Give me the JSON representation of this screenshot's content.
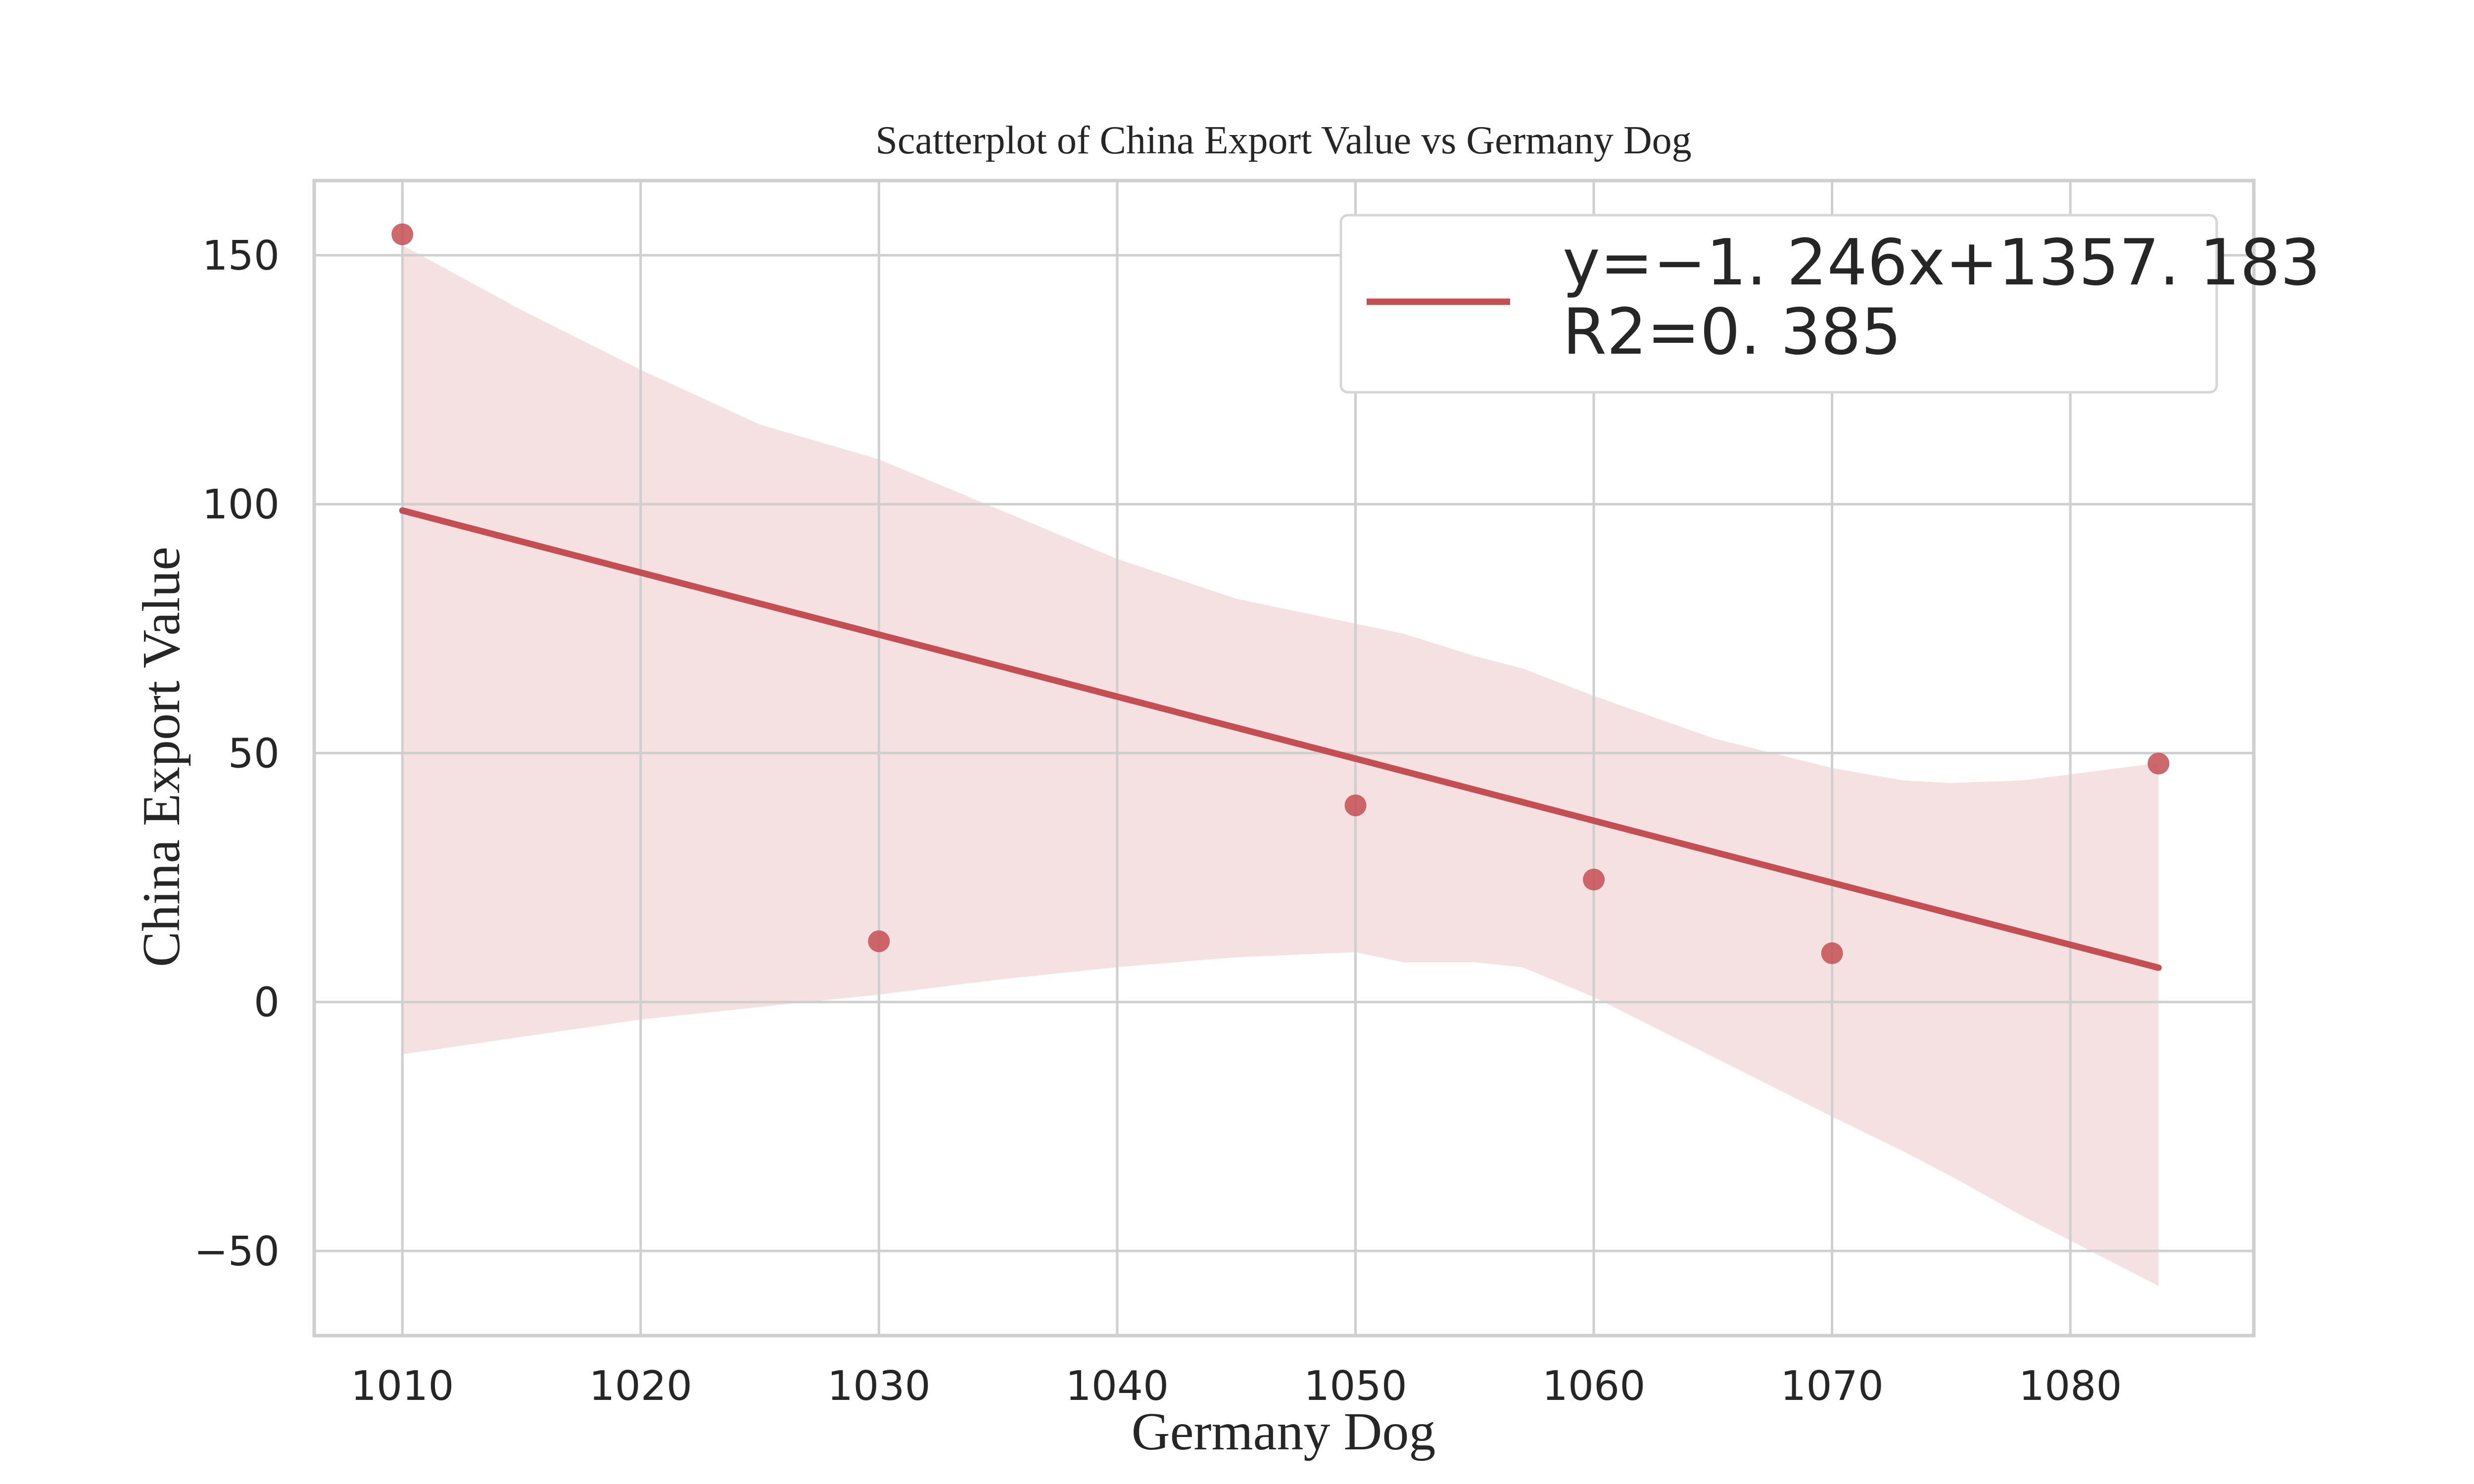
{
  "chart_data": {
    "type": "scatter",
    "title": "Scatterplot of China Export Value vs Germany Dog",
    "xlabel": "Germany Dog",
    "ylabel": "China Export Value",
    "xlim": [
      1006.3,
      1087.7
    ],
    "ylim": [
      -67,
      165
    ],
    "xticks": [
      1010,
      1020,
      1030,
      1040,
      1050,
      1060,
      1070,
      1080
    ],
    "yticks": [
      -50,
      0,
      50,
      100,
      150
    ],
    "ytick_labels": [
      "−50",
      "0",
      "50",
      "100",
      "150"
    ],
    "grid": true,
    "legend_position": "top-right",
    "series": [
      {
        "type": "scatter",
        "x": [
          1010,
          1030,
          1050,
          1060,
          1070,
          1083.7
        ],
        "y": [
          154.2,
          12.2,
          39.5,
          24.6,
          9.8,
          47.9
        ]
      }
    ],
    "regression": {
      "slope": -1.246,
      "intercept": 1357.183,
      "x_range": [
        1010,
        1083.7
      ],
      "equation_label": "y=−1. 246x+1357. 183",
      "r2_label": "R2=0. 385"
    },
    "confidence_band": {
      "x": [
        1010,
        1015,
        1020,
        1025,
        1030,
        1035,
        1040,
        1045,
        1050,
        1052,
        1055,
        1057,
        1060,
        1065,
        1070,
        1073,
        1075,
        1078,
        1083.7
      ],
      "upper": [
        152,
        139,
        127,
        116,
        109,
        99,
        89,
        81,
        76,
        74,
        69.5,
        67,
        61.5,
        53,
        47,
        44.5,
        44,
        44.5,
        48
      ],
      "lower": [
        -10.5,
        -7,
        -3.5,
        -1,
        1.5,
        4.5,
        7,
        9,
        10,
        8,
        8,
        7,
        1,
        -11,
        -23,
        -30,
        -35,
        -43,
        -57
      ]
    },
    "colors": {
      "line": "#c44e52",
      "points": "#c44e52",
      "band": "#f5e1e2",
      "grid": "#cfcfcf",
      "frame": "#cfcfcf",
      "text": "#262626"
    }
  }
}
